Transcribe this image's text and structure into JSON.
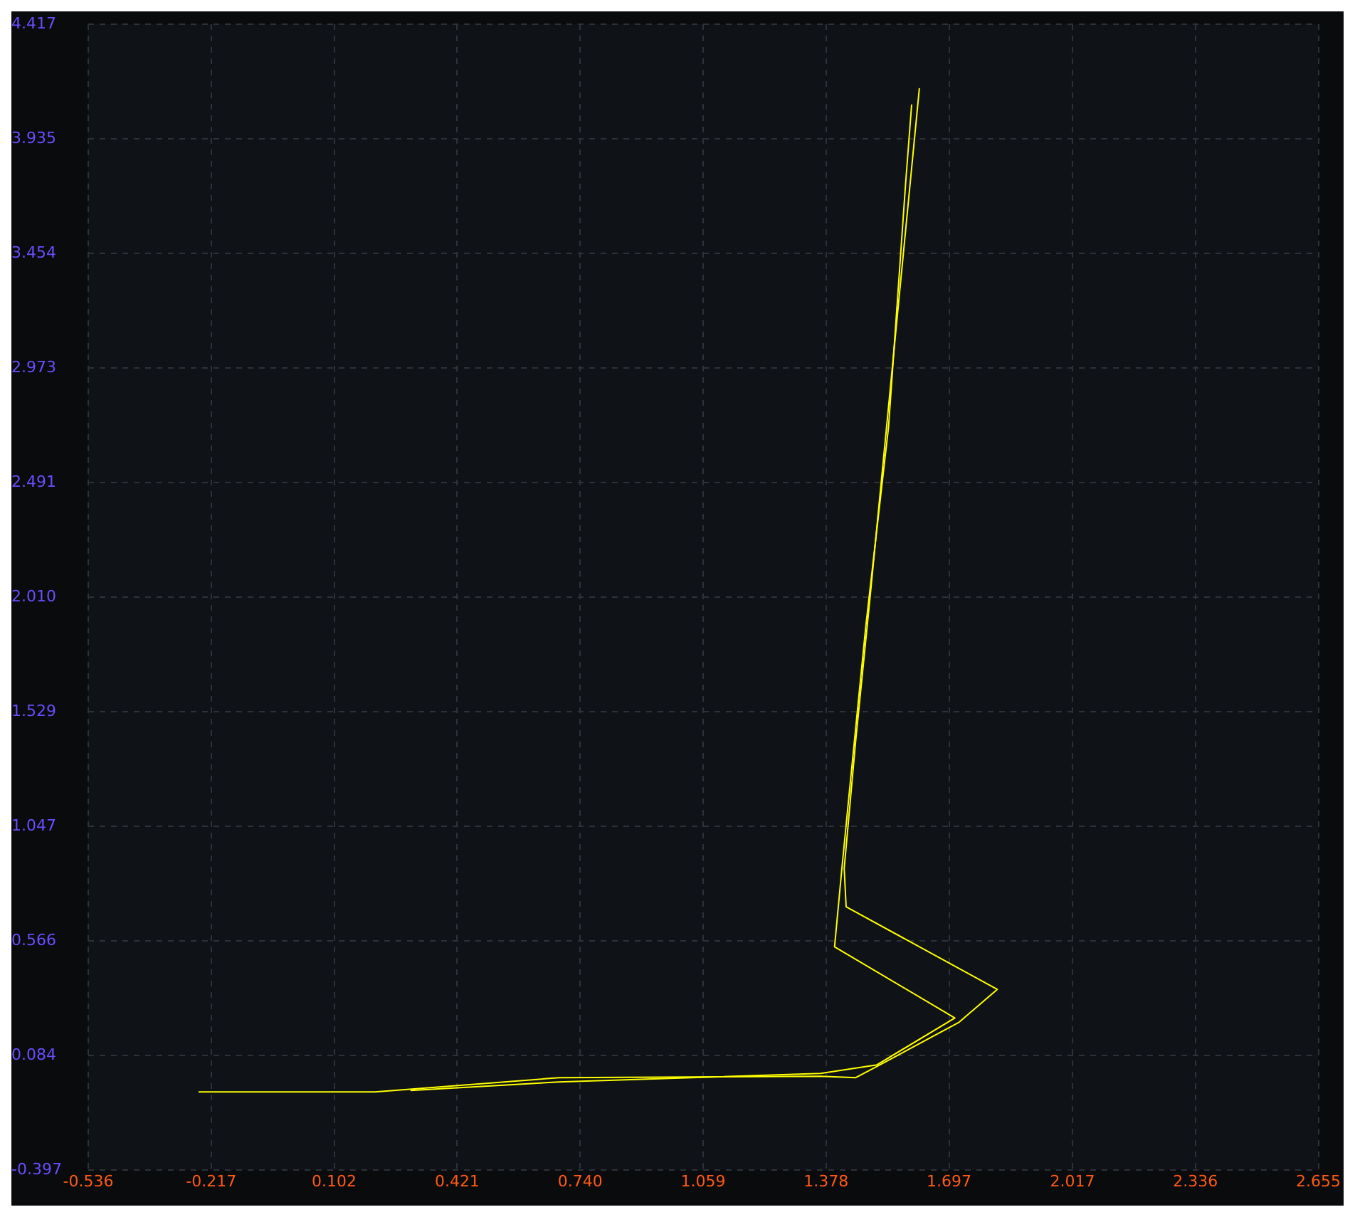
{
  "chart_data": {
    "type": "line",
    "xlim": [
      -0.536,
      2.655
    ],
    "ylim": [
      -0.397,
      4.417
    ],
    "xticks": [
      -0.536,
      -0.217,
      0.102,
      0.421,
      {
        "value": 0.74,
        "label": "0.740"
      },
      1.059,
      1.378,
      1.697,
      2.017,
      2.336,
      2.655
    ],
    "yticks": [
      -0.397,
      0.084,
      0.566,
      1.047,
      1.529,
      {
        "value": 2.01,
        "label": "2.010"
      },
      2.491,
      2.973,
      3.454,
      3.935,
      4.417
    ],
    "grid": true,
    "legend": false,
    "marker": "none",
    "line_style": "solid",
    "series": [
      {
        "color": "#ffff00",
        "x": [
          -0.25,
          0.208,
          0.685,
          1.364,
          1.455,
          1.518,
          1.723,
          1.822,
          1.43,
          1.425,
          1.455,
          1.492,
          1.62
        ],
        "values": [
          -0.069,
          -0.069,
          -0.009,
          -0.003,
          -0.009,
          0.045,
          0.224,
          0.362,
          0.709,
          0.87,
          1.409,
          2.007,
          4.148
        ]
      },
      {
        "color": "#ffff00",
        "x": [
          0.3,
          0.685,
          1.364,
          1.51,
          1.712,
          1.4,
          1.419,
          1.437,
          1.481,
          1.54,
          1.584,
          1.6
        ],
        "values": [
          -0.063,
          -0.027,
          0.009,
          0.045,
          0.242,
          0.541,
          0.87,
          1.169,
          1.887,
          2.724,
          3.741,
          4.08
        ]
      }
    ]
  }
}
